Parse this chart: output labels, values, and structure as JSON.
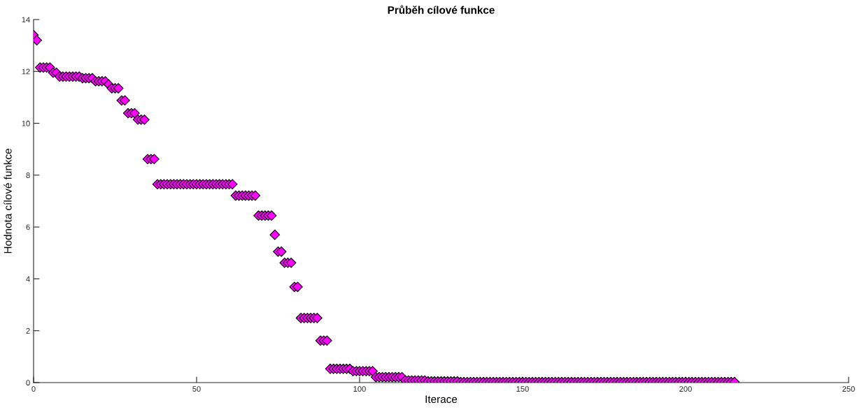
{
  "chart_data": {
    "type": "scatter",
    "title": "Průběh cílové funkce",
    "xlabel": "Iterace",
    "ylabel": "Hodnota cílové funkce",
    "marker": "diamond",
    "grid": false,
    "legend": false,
    "xlim": [
      0,
      250
    ],
    "xticks": [
      0,
      50,
      100,
      150,
      200,
      250
    ],
    "ylim": [
      0,
      14
    ],
    "yticks": [
      0,
      2,
      4,
      6,
      8,
      10,
      12,
      14
    ],
    "series": [
      {
        "color": "#ff00ff",
        "x": [
          0,
          1,
          2,
          3,
          4,
          5,
          6,
          7,
          8,
          9,
          10,
          11,
          12,
          13,
          14,
          15,
          16,
          17,
          18,
          19,
          20,
          21,
          22,
          23,
          24,
          25,
          26,
          27,
          28,
          29,
          30,
          31,
          32,
          33,
          34,
          35,
          36,
          37,
          38,
          39,
          40,
          41,
          42,
          43,
          44,
          45,
          46,
          47,
          48,
          49,
          50,
          51,
          52,
          53,
          54,
          55,
          56,
          57,
          58,
          59,
          60,
          61,
          62,
          63,
          64,
          65,
          66,
          67,
          68,
          69,
          70,
          71,
          72,
          73,
          74,
          75,
          76,
          77,
          78,
          79,
          80,
          81,
          82,
          83,
          84,
          85,
          86,
          87,
          88,
          89,
          90,
          91,
          92,
          93,
          94,
          95,
          96,
          97,
          98,
          99,
          100,
          101,
          102,
          103,
          104,
          105,
          106,
          107,
          108,
          109,
          110,
          111,
          112,
          113,
          114,
          115,
          116,
          117,
          118,
          119,
          120,
          121,
          122,
          123,
          124,
          125,
          126,
          127,
          128,
          129,
          130,
          131,
          132,
          133,
          134,
          135,
          136,
          137,
          138,
          139,
          140,
          141,
          142,
          143,
          144,
          145,
          146,
          147,
          148,
          149,
          150,
          151,
          152,
          153,
          154,
          155,
          156,
          157,
          158,
          159,
          160,
          161,
          162,
          163,
          164,
          165,
          166,
          167,
          168,
          169,
          170,
          171,
          172,
          173,
          174,
          175,
          176,
          177,
          178,
          179,
          180,
          181,
          182,
          183,
          184,
          185,
          186,
          187,
          188,
          189,
          190,
          191,
          192,
          193,
          194,
          195,
          196,
          197,
          198,
          199,
          200,
          201,
          202,
          203,
          204,
          205,
          206,
          207,
          208,
          209,
          210,
          211,
          212,
          213,
          214,
          215
        ],
        "values": [
          13.4,
          13.2,
          12.15,
          12.15,
          12.15,
          12.15,
          11.95,
          11.95,
          11.8,
          11.8,
          11.8,
          11.8,
          11.8,
          11.8,
          11.8,
          11.74,
          11.74,
          11.74,
          11.74,
          11.62,
          11.62,
          11.62,
          11.62,
          11.5,
          11.35,
          11.35,
          11.35,
          10.88,
          10.88,
          10.39,
          10.39,
          10.39,
          10.14,
          10.14,
          10.14,
          8.62,
          8.62,
          8.62,
          7.65,
          7.65,
          7.65,
          7.65,
          7.65,
          7.65,
          7.65,
          7.65,
          7.65,
          7.65,
          7.65,
          7.65,
          7.65,
          7.65,
          7.65,
          7.65,
          7.65,
          7.65,
          7.65,
          7.65,
          7.65,
          7.65,
          7.65,
          7.65,
          7.21,
          7.21,
          7.21,
          7.21,
          7.21,
          7.21,
          7.21,
          6.44,
          6.44,
          6.44,
          6.44,
          6.44,
          5.7,
          5.05,
          5.05,
          4.62,
          4.62,
          4.62,
          3.69,
          3.69,
          2.49,
          2.49,
          2.49,
          2.49,
          2.49,
          2.49,
          1.62,
          1.62,
          1.62,
          0.53,
          0.53,
          0.53,
          0.53,
          0.53,
          0.53,
          0.53,
          0.44,
          0.44,
          0.44,
          0.44,
          0.44,
          0.44,
          0.44,
          0.21,
          0.21,
          0.21,
          0.21,
          0.21,
          0.21,
          0.21,
          0.21,
          0.21,
          0.08,
          0.08,
          0.08,
          0.08,
          0.08,
          0.08,
          0.08,
          0.05,
          0.05,
          0.05,
          0.05,
          0.05,
          0.05,
          0.05,
          0.05,
          0.05,
          0.05,
          0.02,
          0.02,
          0.02,
          0.02,
          0.02,
          0.02,
          0.02,
          0.02,
          0.02,
          0.02,
          0.02,
          0.02,
          0.02,
          0.02,
          0.02,
          0.02,
          0.02,
          0.02,
          0.02,
          0.02,
          0.02,
          0.02,
          0.02,
          0.02,
          0.02,
          0.02,
          0.02,
          0.02,
          0.02,
          0.02,
          0.02,
          0.02,
          0.02,
          0.02,
          0.02,
          0.02,
          0.02,
          0.02,
          0.02,
          0.02,
          0.02,
          0.02,
          0.02,
          0.02,
          0.02,
          0.02,
          0.02,
          0.02,
          0.02,
          0.02,
          0.02,
          0.02,
          0.02,
          0.02,
          0.02,
          0.02,
          0.02,
          0.02,
          0.02,
          0.02,
          0.02,
          0.02,
          0.02,
          0.02,
          0.02,
          0.02,
          0.02,
          0.02,
          0.02,
          0.02,
          0.02,
          0.02,
          0.02,
          0.02,
          0.02,
          0.02,
          0.02,
          0.02,
          0.02,
          0.02,
          0.02,
          0.02,
          0.02,
          0.02,
          0.02
        ]
      }
    ]
  }
}
